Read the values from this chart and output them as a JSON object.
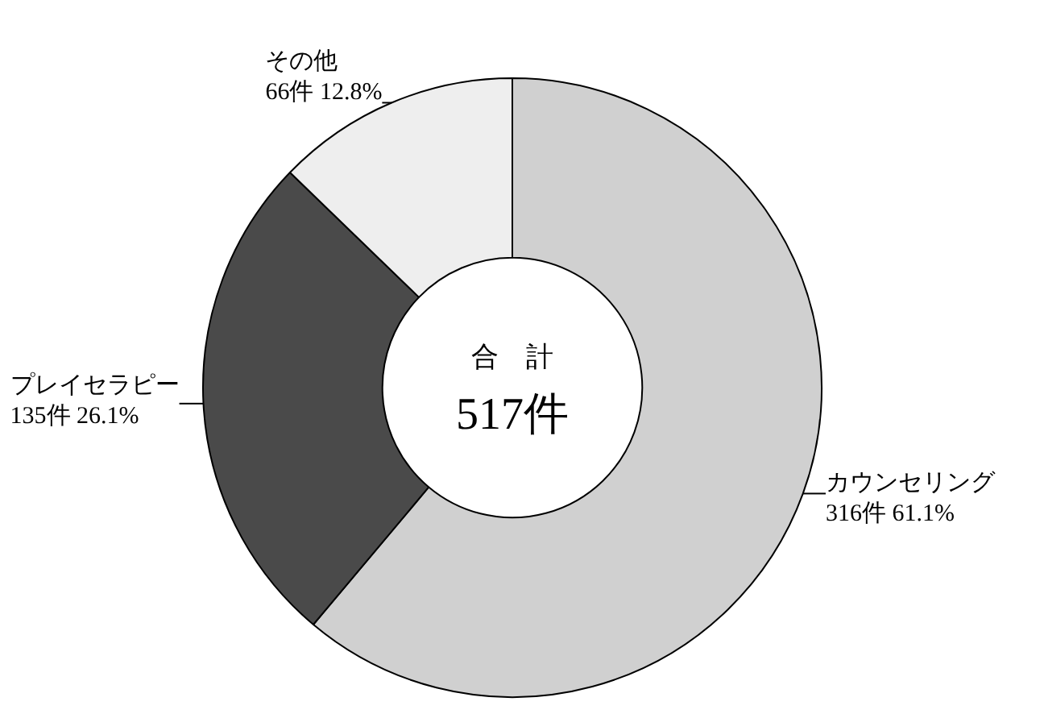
{
  "chart_data": {
    "type": "donut",
    "categories": [
      "カウンセリング",
      "プレイセラピー",
      "その他"
    ],
    "values": [
      316,
      135,
      66
    ],
    "value_labels": [
      "316件 61.1%",
      "135件 26.1%",
      "66件 12.8%"
    ],
    "colors": [
      "#d0d0d0",
      "#4a4a4a",
      "#eeeeee"
    ],
    "annotations": [
      "合　計",
      "517件"
    ]
  }
}
